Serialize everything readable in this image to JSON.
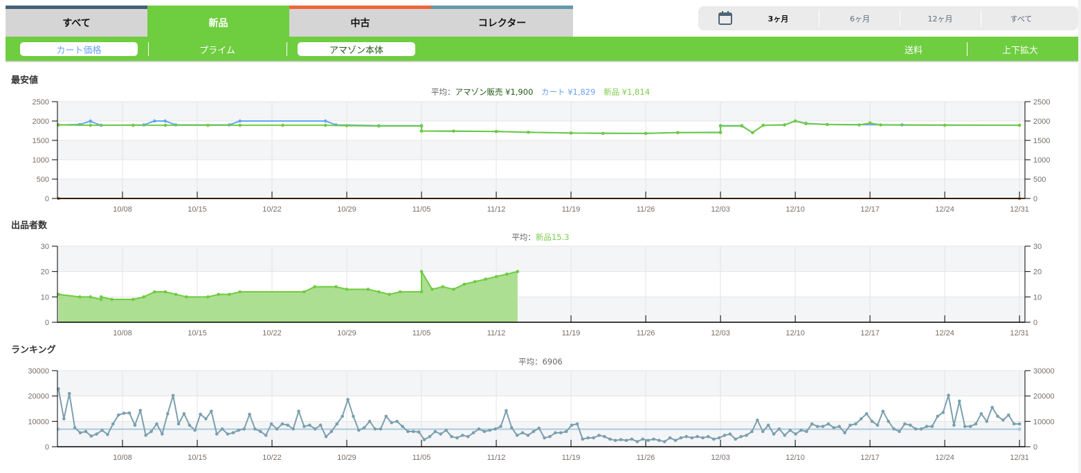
{
  "tabs": [
    {
      "label": "すべて",
      "color": "#456179"
    },
    {
      "label": "新品",
      "color": "#6fcd40",
      "active": true
    },
    {
      "label": "中古",
      "color": "#f0663a"
    },
    {
      "label": "コレクター",
      "color": "#6499a8"
    }
  ],
  "subbar": {
    "cart": "カート価格",
    "prime": "プライム",
    "amazon": "アマゾン本体",
    "shipping": "送料",
    "zoom": "上下拡大"
  },
  "range": {
    "icon": "calendar-icon",
    "options": [
      "3ヶ月",
      "6ヶ月",
      "12ヶ月",
      "すべて"
    ],
    "selected": "3ヶ月"
  },
  "chart_data": [
    {
      "type": "line",
      "title": "最安値",
      "legend_prefix": "平均：",
      "ylim": [
        0,
        2500
      ],
      "yticks": [
        0,
        500,
        1000,
        1500,
        2000,
        2500
      ],
      "xticks": [
        "10/08",
        "10/15",
        "10/22",
        "10/29",
        "11/05",
        "11/12",
        "11/19",
        "11/26",
        "12/03",
        "12/10",
        "12/17",
        "12/24",
        "12/31"
      ],
      "grid": true,
      "series": [
        {
          "name": "アマゾン販売",
          "avg": "¥1,900",
          "color": "#c0781e",
          "legend_color": "#1e5a12",
          "points": [
            [
              "10/02",
              0
            ],
            [
              "12/31",
              0
            ]
          ]
        },
        {
          "name": "カート",
          "avg": "¥1,829",
          "color": "#62a6f0",
          "legend_color": "#6aa0f8",
          "points": [
            [
              "10/02",
              1900
            ],
            [
              "10/04",
              1910
            ],
            [
              "10/05",
              2000
            ],
            [
              "10/05",
              1990
            ],
            [
              "10/06",
              1890
            ],
            [
              "10/10",
              1900
            ],
            [
              "10/11",
              2000
            ],
            [
              "10/12",
              2000
            ],
            [
              "10/13",
              1900
            ],
            [
              "10/18",
              1900
            ],
            [
              "10/19",
              2000
            ],
            [
              "10/27",
              2000
            ],
            [
              "10/28",
              1900
            ],
            [
              "11/01",
              1880
            ],
            [
              "11/05",
              1880
            ],
            [
              "11/05",
              1740
            ],
            [
              "11/12",
              1730
            ],
            [
              "11/15",
              1710
            ],
            [
              "11/19",
              1690
            ],
            [
              "11/26",
              1680
            ],
            [
              "11/29",
              1700
            ],
            [
              "12/03",
              1710
            ],
            [
              "12/03",
              1880
            ],
            [
              "12/05",
              1880
            ],
            [
              "12/06",
              1700
            ],
            [
              "12/07",
              1890
            ],
            [
              "12/09",
              1900
            ],
            [
              "12/10",
              2000
            ],
            [
              "12/11",
              1940
            ],
            [
              "12/13",
              1910
            ],
            [
              "12/20",
              1900
            ],
            [
              "12/31",
              1890
            ]
          ]
        },
        {
          "name": "新品",
          "avg": "¥1,814",
          "color": "#6fcb40",
          "legend_color": "#7ccd4a",
          "points": [
            [
              "10/02",
              1900
            ],
            [
              "10/05",
              1890
            ],
            [
              "10/09",
              1890
            ],
            [
              "10/12",
              1890
            ],
            [
              "10/16",
              1890
            ],
            [
              "10/19",
              1890
            ],
            [
              "10/23",
              1890
            ],
            [
              "10/27",
              1890
            ],
            [
              "10/29",
              1880
            ],
            [
              "11/01",
              1870
            ],
            [
              "11/05",
              1870
            ],
            [
              "11/05",
              1740
            ],
            [
              "11/08",
              1740
            ],
            [
              "11/12",
              1730
            ],
            [
              "11/15",
              1710
            ],
            [
              "11/19",
              1690
            ],
            [
              "11/22",
              1680
            ],
            [
              "11/26",
              1680
            ],
            [
              "11/29",
              1700
            ],
            [
              "12/03",
              1700
            ],
            [
              "12/03",
              1870
            ],
            [
              "12/05",
              1870
            ],
            [
              "12/06",
              1700
            ],
            [
              "12/07",
              1890
            ],
            [
              "12/09",
              1900
            ],
            [
              "12/10",
              2000
            ],
            [
              "12/11",
              1930
            ],
            [
              "12/13",
              1910
            ],
            [
              "12/16",
              1900
            ],
            [
              "12/17",
              1950
            ],
            [
              "12/18",
              1900
            ],
            [
              "12/24",
              1890
            ],
            [
              "12/31",
              1890
            ]
          ]
        }
      ]
    },
    {
      "type": "area",
      "title": "出品者数",
      "legend_prefix": "平均：",
      "ylim": [
        0,
        30
      ],
      "yticks": [
        0,
        10,
        20,
        30
      ],
      "xticks": [
        "10/08",
        "10/15",
        "10/22",
        "10/29",
        "11/05",
        "11/12",
        "11/19",
        "11/26",
        "12/03",
        "12/10",
        "12/17",
        "12/24",
        "12/31"
      ],
      "grid": true,
      "series": [
        {
          "name": "新品",
          "avg": "15.3",
          "color": "#6fcb40",
          "fill": "#acdf91",
          "legend_color": "#7ccd4a",
          "points": [
            [
              "10/02",
              11
            ],
            [
              "10/04",
              10
            ],
            [
              "10/05",
              10
            ],
            [
              "10/06",
              9
            ],
            [
              "10/06",
              10
            ],
            [
              "10/07",
              9
            ],
            [
              "10/09",
              9
            ],
            [
              "10/10",
              10
            ],
            [
              "10/11",
              12
            ],
            [
              "10/12",
              12
            ],
            [
              "10/13",
              11
            ],
            [
              "10/14",
              10
            ],
            [
              "10/16",
              10
            ],
            [
              "10/17",
              11
            ],
            [
              "10/18",
              11
            ],
            [
              "10/19",
              12
            ],
            [
              "10/25",
              12
            ],
            [
              "10/26",
              14
            ],
            [
              "10/28",
              14
            ],
            [
              "10/29",
              13
            ],
            [
              "10/31",
              13
            ],
            [
              "11/01",
              12
            ],
            [
              "11/02",
              11
            ],
            [
              "11/03",
              12
            ],
            [
              "11/05",
              12
            ],
            [
              "11/06",
              13
            ],
            [
              "11/07",
              14
            ],
            [
              "11/08",
              13
            ],
            [
              "11/09",
              15
            ],
            [
              "11/10",
              16
            ],
            [
              "11/11",
              17
            ],
            [
              "11/12",
              18
            ],
            [
              "11/13",
              19
            ],
            [
              "11/14",
              20
            ],
            [
              "11/05",
              20
            ]
          ]
        }
      ]
    },
    {
      "type": "line",
      "title": "ランキング",
      "legend_prefix": "平均：",
      "legend_value": "6906",
      "ylim": [
        0,
        30000
      ],
      "yticks": [
        0,
        10000,
        20000,
        30000
      ],
      "xticks": [
        "10/08",
        "10/15",
        "10/22",
        "10/29",
        "11/05",
        "11/12",
        "11/19",
        "11/26",
        "12/03",
        "12/10",
        "12/17",
        "12/24",
        "12/31"
      ],
      "grid": true,
      "average": 6906,
      "x_start": "10/02",
      "x_end": "12/31",
      "series": [
        {
          "color": "#7a9fae",
          "avg_color": "#a9c9dc",
          "values": [
            22800,
            11000,
            21000,
            7500,
            5500,
            6000,
            4200,
            5000,
            6500,
            4800,
            9000,
            12500,
            13200,
            13300,
            8500,
            14300,
            4500,
            6000,
            9000,
            5000,
            13000,
            20200,
            9000,
            13000,
            8500,
            6500,
            12800,
            11000,
            14000,
            5000,
            7000,
            5000,
            5500,
            6500,
            7000,
            12800,
            7000,
            6000,
            4500,
            9000,
            7000,
            9000,
            8500,
            7000,
            14000,
            8000,
            8500,
            7000,
            8500,
            4000,
            6000,
            9000,
            12000,
            18600,
            12000,
            6500,
            7500,
            10000,
            7000,
            7000,
            12000,
            9500,
            10000,
            8000,
            6000,
            6000,
            5800,
            2800,
            4000,
            6000,
            5000,
            6500,
            4000,
            3500,
            4500,
            4000,
            5500,
            7000,
            6000,
            6500,
            7000,
            8000,
            14200,
            7500,
            4500,
            5500,
            4500,
            6000,
            7300,
            3500,
            4000,
            5500,
            5500,
            6000,
            8500,
            9000,
            3000,
            3500,
            3500,
            4500,
            4000,
            3000,
            2500,
            2800,
            2500,
            3000,
            2000,
            3000,
            2500,
            3000,
            2500,
            2000,
            3500,
            2500,
            3500,
            4000,
            3500,
            4000,
            3500,
            4000,
            3000,
            3500,
            4500,
            5000,
            3000,
            4000,
            4500,
            6000,
            10500,
            6000,
            8500,
            5000,
            7000,
            4500,
            6500,
            5000,
            6500,
            6000,
            9000,
            8000,
            8000,
            9000,
            7500,
            8000,
            5500,
            8500,
            9000,
            11000,
            13000,
            10000,
            8500,
            14000,
            10000,
            7000,
            6000,
            9000,
            8500,
            7000,
            7000,
            8000,
            8000,
            12000,
            13500,
            20300,
            8500,
            18000,
            8000,
            8000,
            9000,
            13000,
            10000,
            15500,
            12000,
            10500,
            12500,
            9000,
            9000
          ]
        }
      ]
    }
  ]
}
